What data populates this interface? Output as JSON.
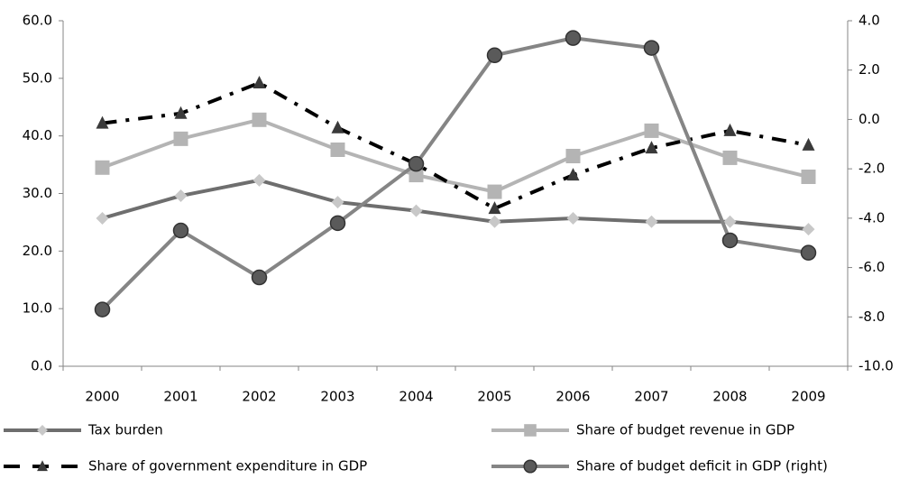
{
  "chart_data": {
    "type": "line",
    "categories": [
      "2000",
      "2001",
      "2002",
      "2003",
      "2004",
      "2005",
      "2006",
      "2007",
      "2008",
      "2009"
    ],
    "series": [
      {
        "name": "Tax burden",
        "color": "#6e6e6e",
        "marker": "diamond",
        "marker_color": "#c8c8c8",
        "values": [
          25.7,
          29.6,
          32.3,
          28.5,
          27.0,
          25.1,
          25.7,
          25.1,
          25.1,
          23.8
        ]
      },
      {
        "name": "Share of budget revenue in GDP",
        "color": "#b4b4b4",
        "marker": "square",
        "marker_color": "#b4b4b4",
        "values": [
          34.5,
          39.5,
          42.8,
          37.6,
          33.2,
          30.3,
          36.5,
          40.9,
          36.2,
          32.9
        ]
      },
      {
        "name": "Share of government expenditure in GDP",
        "color": "#000000",
        "marker": "triangle",
        "marker_color": "#3a3a3a",
        "line_style": "dash-dot",
        "values": [
          42.2,
          43.9,
          49.2,
          41.4,
          35.1,
          27.4,
          33.2,
          37.9,
          40.9,
          38.4
        ]
      },
      {
        "name": "Share of budget deficit in GDP (right)",
        "color": "#858585",
        "marker": "circle",
        "marker_color": "#5a5a5a",
        "axis": "y2",
        "values": [
          -7.7,
          -4.5,
          -6.4,
          -4.2,
          -1.8,
          2.6,
          3.3,
          2.9,
          -4.9,
          -5.4
        ]
      }
    ],
    "ylim": [
      0,
      60
    ],
    "yticks": [
      {
        "value": 0,
        "label": "0.0"
      },
      {
        "value": 10,
        "label": "10.0"
      },
      {
        "value": 20,
        "label": "20.0"
      },
      {
        "value": 30,
        "label": "30.0"
      },
      {
        "value": 40,
        "label": "40.0"
      },
      {
        "value": 50,
        "label": "50.0"
      },
      {
        "value": 60,
        "label": "60.0"
      }
    ],
    "y2lim": [
      -10,
      4
    ],
    "y2ticks": [
      {
        "value": -10,
        "label": "-10.0"
      },
      {
        "value": -8,
        "label": "-8.0"
      },
      {
        "value": -6,
        "label": "-6.0"
      },
      {
        "value": -4,
        "label": "-4.0"
      },
      {
        "value": -2,
        "label": "-2.0"
      },
      {
        "value": 0,
        "label": "0.0"
      },
      {
        "value": 2,
        "label": "2.0"
      },
      {
        "value": 4,
        "label": "4.0"
      }
    ],
    "grid": false,
    "legend": "bottom"
  }
}
